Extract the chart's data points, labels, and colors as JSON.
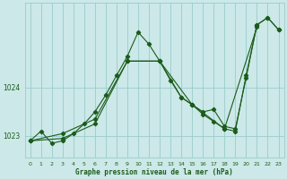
{
  "xlabel": "Graphe pression niveau de la mer (hPa)",
  "bg_color": "#cce8e8",
  "grid_color": "#99cccc",
  "line_color": "#1a5c1a",
  "xlim": [
    -0.5,
    23.5
  ],
  "ylim": [
    1022.55,
    1025.75
  ],
  "yticks": [
    1023,
    1024
  ],
  "xticks": [
    0,
    1,
    2,
    3,
    4,
    5,
    6,
    7,
    8,
    9,
    10,
    11,
    12,
    13,
    14,
    15,
    16,
    17,
    18,
    19,
    20,
    21,
    22,
    23
  ],
  "series1_x": [
    0,
    1,
    2,
    3,
    4,
    5,
    6,
    7,
    8,
    9,
    10,
    11,
    12,
    13,
    14,
    15,
    16,
    17,
    18,
    19,
    20,
    21,
    22,
    23
  ],
  "series1_y": [
    1022.9,
    1023.1,
    1022.85,
    1022.9,
    1023.05,
    1023.25,
    1023.5,
    1023.85,
    1024.25,
    1024.65,
    1025.15,
    1024.9,
    1024.55,
    1024.15,
    1023.8,
    1023.65,
    1023.5,
    1023.55,
    1023.2,
    1023.15,
    1024.2,
    1025.3,
    1025.45,
    1025.2
  ],
  "series2_x": [
    0,
    3,
    6,
    9,
    12,
    14,
    15,
    16,
    17,
    18,
    19,
    20,
    21,
    22,
    23
  ],
  "series2_y": [
    1022.9,
    1023.05,
    1023.35,
    1024.55,
    1024.55,
    1023.8,
    1023.65,
    1023.45,
    1023.3,
    1023.15,
    1023.1,
    1024.25,
    1025.3,
    1025.45,
    1025.2
  ],
  "series3_x": [
    0,
    3,
    6,
    9,
    12,
    15,
    18,
    21
  ],
  "series3_y": [
    1022.9,
    1022.95,
    1023.25,
    1024.55,
    1024.55,
    1023.65,
    1023.15,
    1025.25
  ]
}
